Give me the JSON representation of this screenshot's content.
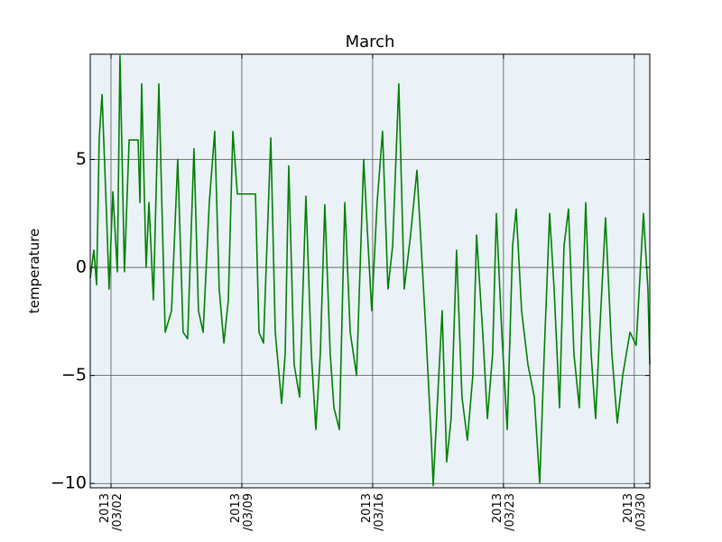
{
  "chart_data": {
    "type": "line",
    "title": "March",
    "y_label": "temperature",
    "grid": true,
    "background": "#eaf2f8",
    "xlim": [
      0.89,
      30.83
    ],
    "ylim": [
      -10.2,
      9.87
    ],
    "xticks": [
      {
        "value": 2,
        "label": "2013\n/03/02"
      },
      {
        "value": 9,
        "label": "2013\n/03/09"
      },
      {
        "value": 16,
        "label": "2013\n/03/16"
      },
      {
        "value": 23,
        "label": "2013\n/03/23"
      },
      {
        "value": 30,
        "label": "2013\n/03/30"
      }
    ],
    "yticks": [
      {
        "value": -10,
        "label": "−10"
      },
      {
        "value": -5,
        "label": "−5"
      },
      0,
      5
    ],
    "series": [
      {
        "name": "temperature",
        "color": "#008000",
        "x": [
          0.89,
          1.08,
          1.23,
          1.37,
          1.52,
          1.76,
          1.9,
          2.1,
          2.34,
          2.48,
          2.72,
          2.97,
          3.45,
          3.55,
          3.64,
          3.88,
          4.03,
          4.27,
          4.56,
          4.75,
          4.9,
          5.24,
          5.57,
          5.86,
          6.1,
          6.44,
          6.68,
          6.93,
          7.26,
          7.55,
          7.79,
          8.04,
          8.28,
          8.52,
          8.76,
          9.73,
          9.92,
          10.16,
          10.55,
          10.79,
          11.13,
          11.32,
          11.51,
          11.8,
          12.09,
          12.43,
          12.72,
          12.96,
          13.2,
          13.44,
          13.73,
          13.93,
          14.22,
          14.51,
          14.8,
          15.14,
          15.52,
          15.76,
          15.95,
          16.24,
          16.53,
          16.82,
          17.07,
          17.4,
          17.69,
          18.03,
          18.37,
          18.66,
          18.85,
          19.14,
          19.24,
          19.48,
          19.72,
          19.96,
          20.2,
          20.49,
          20.78,
          21.07,
          21.36,
          21.56,
          21.89,
          22.14,
          22.42,
          22.62,
          22.91,
          23.2,
          23.49,
          23.68,
          23.97,
          24.31,
          24.65,
          24.94,
          25.18,
          25.47,
          25.71,
          26.0,
          26.24,
          26.48,
          26.77,
          27.06,
          27.4,
          27.69,
          27.93,
          28.12,
          28.46,
          28.8,
          29.09,
          29.38,
          29.77,
          30.1,
          30.49,
          30.73,
          30.83
        ],
        "values": [
          -0.5,
          0.8,
          -0.8,
          6,
          8,
          2.5,
          -1,
          3.5,
          -0.2,
          9.8,
          -0.2,
          5.9,
          5.9,
          3,
          8.5,
          0,
          3,
          -1.5,
          8.5,
          2,
          -3,
          -2,
          5,
          -3,
          -3.3,
          5.5,
          -2,
          -3,
          3,
          6.3,
          -1,
          -3.5,
          -1.5,
          6.3,
          3.4,
          3.4,
          -3,
          -3.5,
          6,
          -3,
          -6.3,
          -4,
          4.7,
          -4.5,
          -6,
          3.3,
          -4,
          -7.5,
          -4,
          2.9,
          -4,
          -6.5,
          -7.5,
          3,
          -3,
          -5,
          5,
          1,
          -2,
          3,
          6.3,
          -1,
          1,
          8.5,
          -1,
          1.5,
          4.5,
          0,
          -3,
          -8,
          -10.1,
          -6,
          -2,
          -9,
          -7,
          0.8,
          -6,
          -8,
          -5,
          1.5,
          -3,
          -7,
          -4,
          2.5,
          -3,
          -7.5,
          1,
          2.7,
          -2,
          -4.5,
          -6,
          -10,
          -4,
          2.5,
          -1,
          -6.5,
          1,
          2.7,
          -4,
          -6.5,
          3,
          -4,
          -7,
          -3.5,
          2.3,
          -4,
          -7.2,
          -5,
          -3,
          -3.6,
          2.5,
          -1,
          -4.5
        ]
      }
    ]
  }
}
